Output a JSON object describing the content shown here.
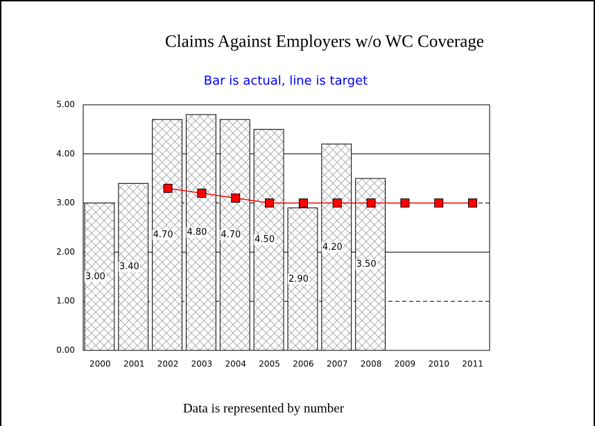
{
  "chart_data": {
    "type": "bar",
    "title": "Claims Against Employers w/o WC Coverage",
    "subtitle": "Bar is actual, line is target",
    "footer": "Data is represented by number",
    "categories": [
      "2000",
      "2001",
      "2002",
      "2003",
      "2004",
      "2005",
      "2006",
      "2007",
      "2008",
      "2009",
      "2010",
      "2011"
    ],
    "series": [
      {
        "type": "bar",
        "color": "#a0a0a0",
        "values": [
          3.0,
          3.4,
          4.7,
          4.8,
          4.7,
          4.5,
          2.9,
          4.2,
          3.5,
          null,
          null,
          null
        ],
        "value_labels": [
          "3.00",
          "3.40",
          "4.70",
          "4.80",
          "4.70",
          "4.50",
          "2.90",
          "4.20",
          "3.50",
          null,
          null,
          null
        ]
      },
      {
        "type": "line",
        "color": "#ff0000",
        "values": [
          null,
          null,
          3.3,
          3.2,
          3.1,
          3.0,
          3.0,
          3.0,
          3.0,
          3.0,
          3.0,
          3.0
        ]
      }
    ],
    "ylim": [
      0,
      5
    ],
    "yticks": [
      {
        "value": 0,
        "label": "0.00"
      },
      {
        "value": 1,
        "label": "1.00"
      },
      {
        "value": 2,
        "label": "2.00"
      },
      {
        "value": 3,
        "label": "3.00"
      },
      {
        "value": 4,
        "label": "4.00"
      },
      {
        "value": 5,
        "label": "5.00"
      }
    ],
    "grid": true
  }
}
